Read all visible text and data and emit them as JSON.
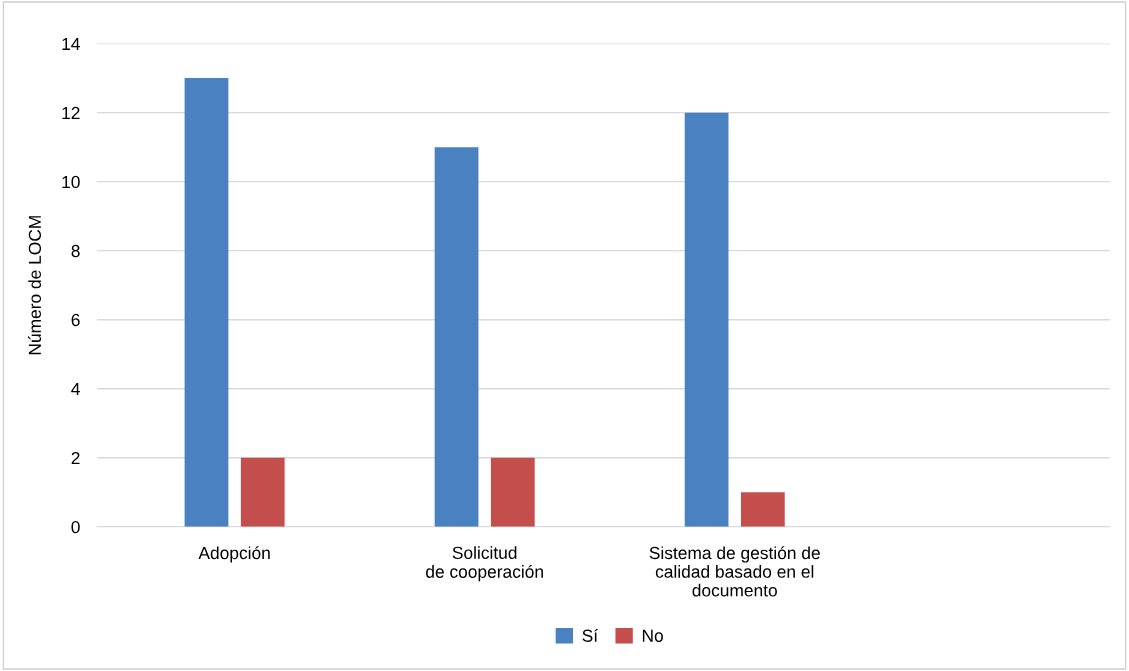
{
  "chart_data": {
    "type": "bar",
    "ylabel": "Número de LOCM",
    "categories": [
      "Adopción",
      "Solicitud\nde cooperación",
      "Sistema de gestión de\ncalidad basado en el\ndocumento",
      null
    ],
    "series": [
      {
        "name": "Sí",
        "color": "#4a81c0",
        "values": [
          13,
          11,
          12,
          null
        ]
      },
      {
        "name": "No",
        "color": "#c44e4c",
        "values": [
          2,
          2,
          1,
          null
        ]
      }
    ],
    "ylim": [
      0,
      14
    ],
    "yticks": [
      0,
      2,
      4,
      6,
      8,
      10,
      12,
      14
    ],
    "grid": "y",
    "legend": "bottom"
  }
}
